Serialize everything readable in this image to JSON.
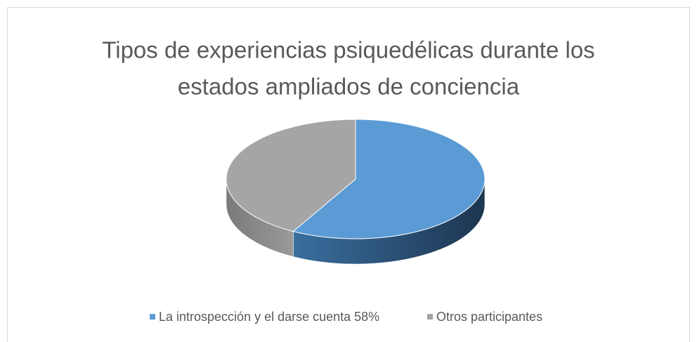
{
  "chart_data": {
    "type": "pie3d",
    "title": [
      "Tipos de experiencias psiquedélicas durante los",
      "estados ampliados de conciencia"
    ],
    "categories": [
      "La introspección y el darse cuenta 58%",
      "Otros participantes"
    ],
    "values": [
      58,
      42
    ],
    "colors": [
      "#5b9bd5",
      "#a5a5a5"
    ],
    "legend": "bottom"
  }
}
